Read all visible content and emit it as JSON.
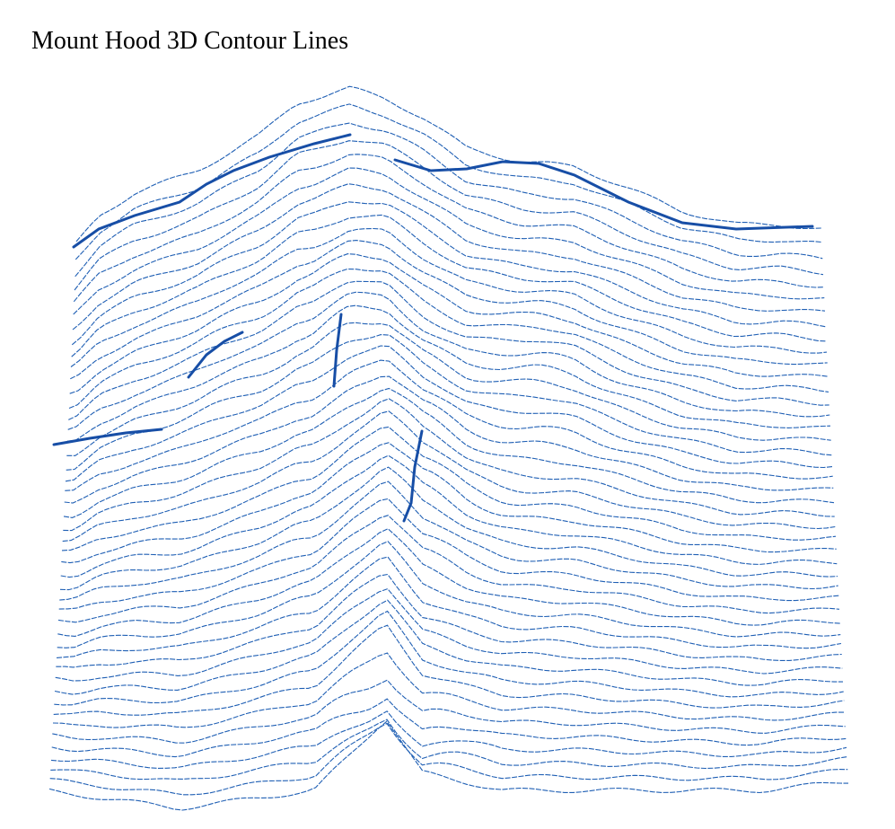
{
  "chart_data": {
    "type": "surface-contour",
    "title": "Mount Hood 3D Contour Lines",
    "subject": "Mount Hood",
    "contour_count": 46,
    "axes_visible": false,
    "grid": false,
    "legend": "none",
    "colors": {
      "contour": "#1f5fb4",
      "ridge": "#174ea6",
      "background": "#ffffff"
    }
  }
}
